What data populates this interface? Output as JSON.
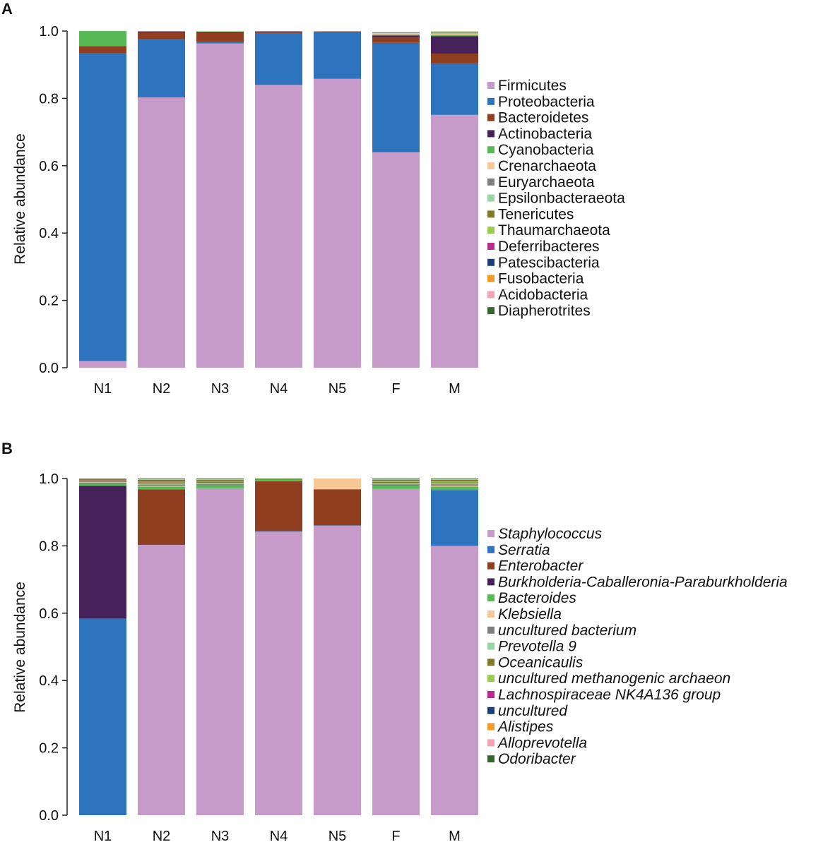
{
  "chart_data": [
    {
      "panel": "A",
      "type": "bar",
      "stacked": true,
      "ylabel": "Relative abundance",
      "ylim": [
        0,
        1
      ],
      "yticks": [
        "0.0",
        "0.2",
        "0.4",
        "0.6",
        "0.8",
        "1.0"
      ],
      "categories": [
        "N1",
        "N2",
        "N3",
        "N4",
        "N5",
        "F",
        "M"
      ],
      "italic_legend": false,
      "series": [
        {
          "name": "Firmicutes",
          "color": "#C79BC9",
          "values": [
            0.02,
            0.803,
            0.963,
            0.84,
            0.858,
            0.64,
            0.751
          ]
        },
        {
          "name": "Proteobacteria",
          "color": "#2E73BD",
          "values": [
            0.915,
            0.173,
            0.005,
            0.154,
            0.139,
            0.325,
            0.152
          ]
        },
        {
          "name": "Bacteroidetes",
          "color": "#8F3F20",
          "values": [
            0.02,
            0.02,
            0.029,
            0.004,
            0.002,
            0.017,
            0.03
          ]
        },
        {
          "name": "Actinobacteria",
          "color": "#47215A",
          "values": [
            0.0,
            0.003,
            0.001,
            0.001,
            0.0,
            0.005,
            0.052
          ]
        },
        {
          "name": "Cyanobacteria",
          "color": "#57BA56",
          "values": [
            0.045,
            0.0,
            0.001,
            0.0,
            0.0,
            0.003,
            0.004
          ]
        },
        {
          "name": "Crenarchaeota",
          "color": "#F7C896",
          "values": [
            0.0,
            0.0,
            0.0,
            0.0,
            0.0,
            0.004,
            0.004
          ]
        },
        {
          "name": "Euryarchaeota",
          "color": "#7F7F7F",
          "values": [
            0.0,
            0.0,
            0.0,
            0.0,
            0.0,
            0.002,
            0.002
          ]
        },
        {
          "name": "Epsilonbacteraeota",
          "color": "#97D4A6",
          "values": [
            0.0,
            0.0,
            0.0,
            0.0,
            0.0,
            0.002,
            0.002
          ]
        },
        {
          "name": "Tenericutes",
          "color": "#827A28",
          "values": [
            0.0,
            0.0,
            0.0,
            0.0,
            0.0,
            0.0,
            0.001
          ]
        },
        {
          "name": "Thaumarchaeota",
          "color": "#98CB4E",
          "values": [
            0.0,
            0.0,
            0.0,
            0.0,
            0.0,
            0.0,
            0.001
          ]
        },
        {
          "name": "Deferribacteres",
          "color": "#BA2C8F",
          "values": [
            0.0,
            0.0,
            0.0,
            0.0,
            0.0,
            0.0,
            0.0
          ]
        },
        {
          "name": "Patescibacteria",
          "color": "#1C3F78",
          "values": [
            0.0,
            0.0,
            0.0,
            0.0,
            0.0,
            0.0,
            0.0
          ]
        },
        {
          "name": "Fusobacteria",
          "color": "#F39A22",
          "values": [
            0.0,
            0.0,
            0.0,
            0.0,
            0.0,
            0.0,
            0.0
          ]
        },
        {
          "name": "Acidobacteria",
          "color": "#F5A2B2",
          "values": [
            0.0,
            0.0,
            0.0,
            0.0,
            0.0,
            0.0,
            0.0
          ]
        },
        {
          "name": "Diapherotrites",
          "color": "#35682E",
          "values": [
            0.0,
            0.0,
            0.0,
            0.0,
            0.0,
            0.0,
            0.0
          ]
        }
      ]
    },
    {
      "panel": "B",
      "type": "bar",
      "stacked": true,
      "ylabel": "Relative abundance",
      "ylim": [
        0,
        1
      ],
      "yticks": [
        "0.0",
        "0.2",
        "0.4",
        "0.6",
        "0.8",
        "1.0"
      ],
      "categories": [
        "N1",
        "N2",
        "N3",
        "N4",
        "N5",
        "F",
        "M"
      ],
      "italic_legend": true,
      "series": [
        {
          "name": "Staphylococcus",
          "color": "#C79BC9",
          "values": [
            0.0,
            0.803,
            0.97,
            0.842,
            0.86,
            0.969,
            0.8
          ]
        },
        {
          "name": "Serratia",
          "color": "#2E73BD",
          "values": [
            0.584,
            0.0,
            0.0,
            0.002,
            0.001,
            0.0,
            0.166
          ]
        },
        {
          "name": "Enterobacter",
          "color": "#8F3F20",
          "values": [
            0.0,
            0.165,
            0.0,
            0.148,
            0.107,
            0.0,
            0.0
          ]
        },
        {
          "name": "Burkholderia-Caballeronia-Paraburkholderia",
          "color": "#47215A",
          "values": [
            0.394,
            0.0,
            0.0,
            0.0,
            0.0,
            0.0,
            0.0
          ]
        },
        {
          "name": "Bacteroides",
          "color": "#57BA56",
          "values": [
            0.006,
            0.008,
            0.01,
            0.004,
            0.0,
            0.01,
            0.01
          ]
        },
        {
          "name": "Klebsiella",
          "color": "#F7C896",
          "values": [
            0.0,
            0.002,
            0.0,
            0.0,
            0.032,
            0.0,
            0.003
          ]
        },
        {
          "name": "uncultured bacterium",
          "color": "#7F7F7F",
          "values": [
            0.004,
            0.004,
            0.004,
            0.0,
            0.0,
            0.004,
            0.004
          ]
        },
        {
          "name": "Prevotella 9",
          "color": "#97D4A6",
          "values": [
            0.002,
            0.003,
            0.003,
            0.0,
            0.0,
            0.003,
            0.003
          ]
        },
        {
          "name": "Oceanicaulis",
          "color": "#827A28",
          "values": [
            0.003,
            0.004,
            0.004,
            0.002,
            0.0,
            0.004,
            0.003
          ]
        },
        {
          "name": "uncultured methanogenic archaeon",
          "color": "#98CB4E",
          "values": [
            0.002,
            0.002,
            0.002,
            0.001,
            0.0,
            0.003,
            0.003
          ]
        },
        {
          "name": "Lachnospiraceae NK4A136 group",
          "color": "#BA2C8F",
          "values": [
            0.001,
            0.002,
            0.001,
            0.0,
            0.0,
            0.001,
            0.002
          ]
        },
        {
          "name": "uncultured",
          "color": "#1C3F78",
          "values": [
            0.001,
            0.002,
            0.001,
            0.0,
            0.0,
            0.001,
            0.001
          ]
        },
        {
          "name": "Alistipes",
          "color": "#F39A22",
          "values": [
            0.001,
            0.001,
            0.001,
            0.0,
            0.0,
            0.002,
            0.001
          ]
        },
        {
          "name": "Alloprevotella",
          "color": "#F5A2B2",
          "values": [
            0.001,
            0.002,
            0.002,
            0.0,
            0.0,
            0.001,
            0.002
          ]
        },
        {
          "name": "Odoribacter",
          "color": "#35682E",
          "values": [
            0.001,
            0.002,
            0.002,
            0.001,
            0.0,
            0.002,
            0.002
          ]
        }
      ]
    }
  ]
}
